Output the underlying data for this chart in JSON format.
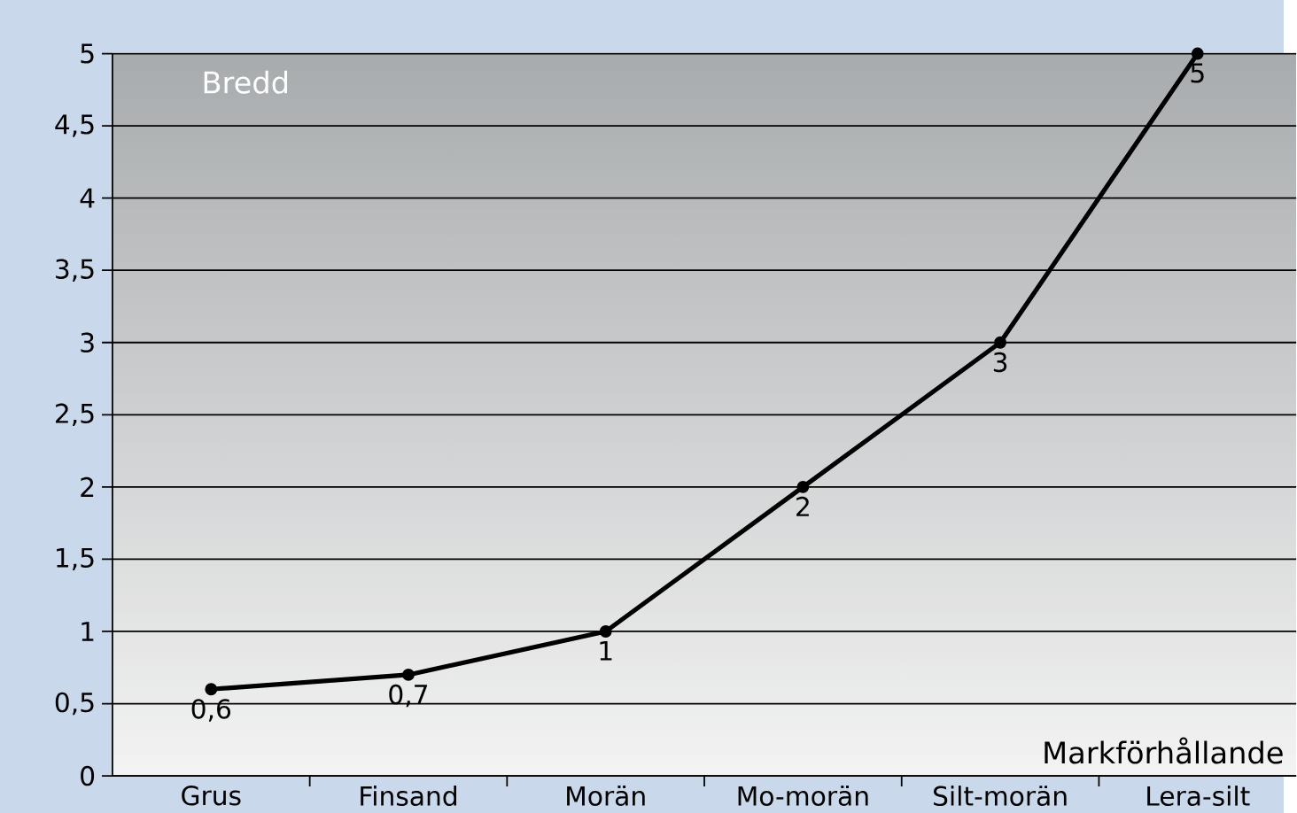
{
  "chart_data": {
    "type": "line",
    "xlabel": "Markförhållande",
    "ylabel": "Bredd",
    "categories": [
      "Grus",
      "Finsand",
      "Morän",
      "Mo-morän",
      "Silt-morän",
      "Lera-silt"
    ],
    "series": [
      {
        "color": "#000000",
        "values": [
          0.6,
          0.7,
          1,
          2,
          3,
          5
        ],
        "value_labels": [
          "0,6",
          "0,7",
          "1",
          "2",
          "3",
          "5"
        ]
      }
    ],
    "ylim": [
      0,
      5
    ],
    "yticks": [
      0,
      {
        "value": 0.5,
        "label": "0,5"
      },
      1,
      {
        "value": 1.5,
        "label": "1,5"
      },
      2,
      {
        "value": 2.5,
        "label": "2,5"
      },
      3,
      {
        "value": 3.5,
        "label": "3,5"
      },
      4,
      {
        "value": 4.5,
        "label": "4,5"
      },
      5
    ],
    "grid": "y",
    "marker": "circle",
    "line_style": "solid"
  }
}
